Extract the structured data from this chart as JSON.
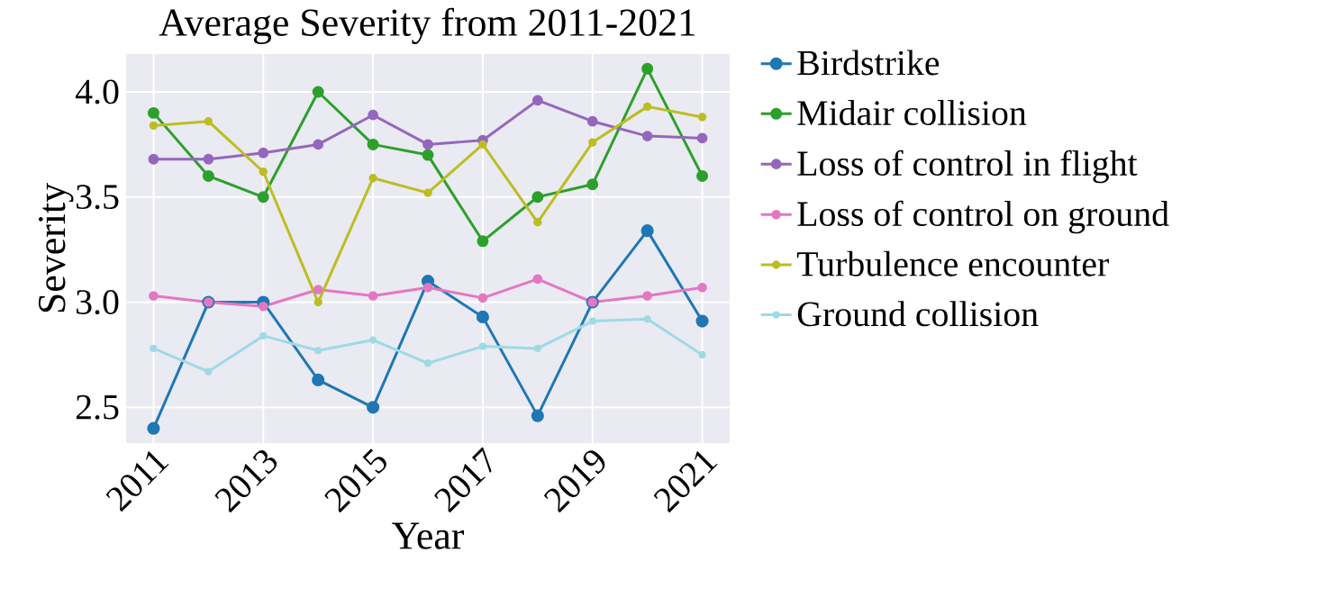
{
  "chart_data": {
    "type": "line",
    "title": "Average Severity from 2011-2021",
    "xlabel": "Year",
    "ylabel": "Severity",
    "x": [
      2011,
      2012,
      2013,
      2014,
      2015,
      2016,
      2017,
      2018,
      2019,
      2020,
      2021
    ],
    "series": [
      {
        "name": "Birdstrike",
        "color": "#1f77b4",
        "values": [
          2.4,
          3.0,
          3.0,
          2.63,
          2.5,
          3.1,
          2.93,
          2.46,
          3.0,
          3.34,
          2.91
        ]
      },
      {
        "name": "Midair collision",
        "color": "#2ca02c",
        "values": [
          3.9,
          3.6,
          3.5,
          4.0,
          3.75,
          3.7,
          3.29,
          3.5,
          3.56,
          4.11,
          3.6
        ]
      },
      {
        "name": "Loss of control in flight",
        "color": "#9467bd",
        "values": [
          3.68,
          3.68,
          3.71,
          3.75,
          3.89,
          3.75,
          3.77,
          3.96,
          3.86,
          3.79,
          3.78
        ]
      },
      {
        "name": "Loss of control on ground",
        "color": "#e377c2",
        "values": [
          3.03,
          3.0,
          2.98,
          3.06,
          3.03,
          3.07,
          3.02,
          3.11,
          3.0,
          3.03,
          3.07
        ]
      },
      {
        "name": "Turbulence encounter",
        "color": "#bcbd22",
        "values": [
          3.84,
          3.86,
          3.62,
          3.0,
          3.59,
          3.52,
          3.75,
          3.38,
          3.76,
          3.93,
          3.88
        ]
      },
      {
        "name": "Ground collision",
        "color": "#9edae5",
        "values": [
          2.78,
          2.67,
          2.84,
          2.77,
          2.82,
          2.71,
          2.79,
          2.78,
          2.91,
          2.92,
          2.75
        ]
      }
    ],
    "xlim": [
      2010.5,
      2021.5
    ],
    "ylim": [
      2.33,
      4.18
    ],
    "xticks": [
      2011,
      2013,
      2015,
      2017,
      2019,
      2021
    ],
    "yticks": [
      {
        "value": 2.5,
        "label": "2.5"
      },
      {
        "value": 3.0,
        "label": "3.0"
      },
      {
        "value": 3.5,
        "label": "3.5"
      },
      {
        "value": 4.0,
        "label": "4.0"
      }
    ],
    "grid": true,
    "legend": "right",
    "marker": "circle",
    "line_style": "solid"
  }
}
